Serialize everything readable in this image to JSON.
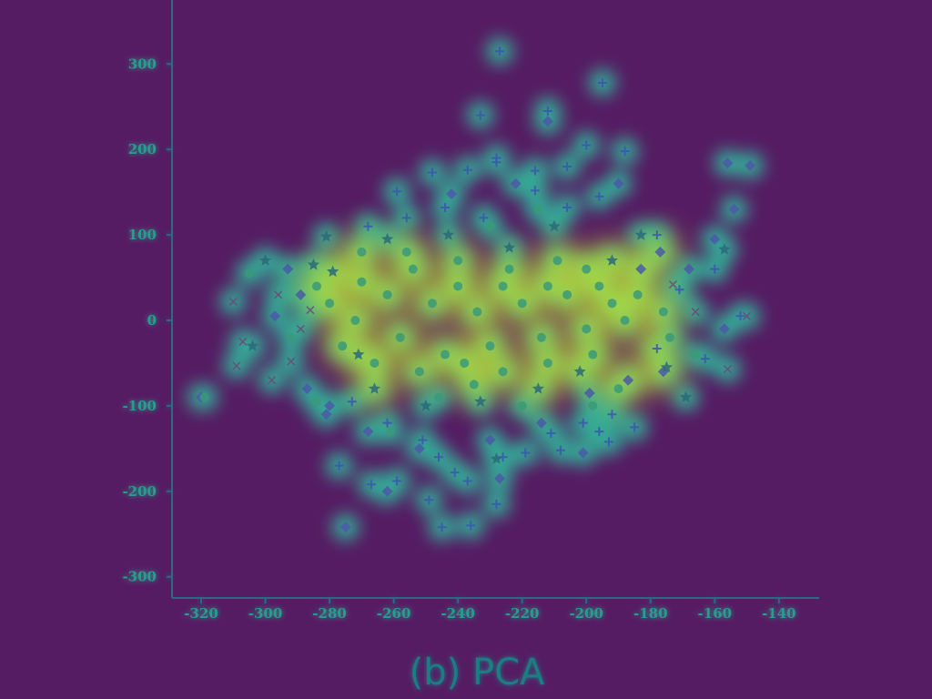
{
  "chart_data": {
    "type": "scatter",
    "title": "",
    "caption": "(b) PCA",
    "xlabel": "",
    "ylabel": "",
    "xlim": [
      -330,
      -135
    ],
    "ylim": [
      -315,
      345
    ],
    "xticks": [
      "-320",
      "-300",
      "-280",
      "-260",
      "-240",
      "-220",
      "-200",
      "-180",
      "-160",
      "-140"
    ],
    "xtick_values": [
      -320,
      -300,
      -280,
      -260,
      -240,
      -220,
      -200,
      -180,
      -160,
      -140
    ],
    "yticks": [
      "-300",
      "-200",
      "-100",
      "0",
      "100",
      "200",
      "300"
    ],
    "ytick_values": [
      -300,
      -200,
      -100,
      0,
      100,
      200,
      300
    ],
    "grid": false,
    "legend": "none",
    "colors": {
      "background": "#561c63",
      "axis": "#2a6a86",
      "tick_text": "#2a9c8c",
      "glow": "#2fc3a0",
      "core": "#c9e72a",
      "marker": "#3a56b0"
    },
    "series": [
      {
        "marker": "cross",
        "points": [
          [
            -227,
            315
          ],
          [
            -195,
            278
          ],
          [
            -233,
            240
          ],
          [
            -212,
            245
          ],
          [
            -200,
            205
          ],
          [
            -188,
            198
          ],
          [
            -228,
            190
          ],
          [
            -248,
            173
          ],
          [
            -237,
            176
          ],
          [
            -259,
            151
          ],
          [
            -228,
            185
          ],
          [
            -206,
            180
          ],
          [
            -216,
            175
          ],
          [
            -178,
            100
          ],
          [
            -171,
            36
          ],
          [
            -160,
            60
          ],
          [
            -152,
            5
          ],
          [
            -163,
            -45
          ],
          [
            -178,
            -33
          ],
          [
            -192,
            -110
          ],
          [
            -196,
            -130
          ],
          [
            -193,
            -142
          ],
          [
            -208,
            -152
          ],
          [
            -219,
            -155
          ],
          [
            -226,
            -160
          ],
          [
            -228,
            -215
          ],
          [
            -237,
            -188
          ],
          [
            -241,
            -178
          ],
          [
            -246,
            -160
          ],
          [
            -236,
            -240
          ],
          [
            -245,
            -242
          ],
          [
            -249,
            -210
          ],
          [
            -259,
            -188
          ],
          [
            -267,
            -192
          ],
          [
            -277,
            -170
          ],
          [
            -262,
            -120
          ],
          [
            -251,
            -140
          ],
          [
            -273,
            -95
          ],
          [
            -211,
            -132
          ],
          [
            -201,
            -120
          ],
          [
            -185,
            -125
          ],
          [
            -216,
            152
          ],
          [
            -206,
            132
          ],
          [
            -196,
            145
          ],
          [
            -232,
            120
          ],
          [
            -244,
            132
          ],
          [
            -256,
            120
          ],
          [
            -268,
            110
          ]
        ]
      },
      {
        "marker": "diamond",
        "points": [
          [
            -156,
            184
          ],
          [
            -149,
            181
          ],
          [
            -154,
            130
          ],
          [
            -160,
            95
          ],
          [
            -168,
            60
          ],
          [
            -157,
            -10
          ],
          [
            -176,
            -60
          ],
          [
            -187,
            -70
          ],
          [
            -199,
            -85
          ],
          [
            -214,
            -120
          ],
          [
            -227,
            -185
          ],
          [
            -262,
            -200
          ],
          [
            -275,
            -242
          ],
          [
            -281,
            -110
          ],
          [
            -287,
            -80
          ],
          [
            -293,
            60
          ],
          [
            -297,
            5
          ],
          [
            -320,
            -90
          ],
          [
            -212,
            233
          ],
          [
            -242,
            148
          ],
          [
            -222,
            160
          ],
          [
            -190,
            160
          ],
          [
            -177,
            80
          ],
          [
            -183,
            60
          ],
          [
            -201,
            -155
          ],
          [
            -230,
            -140
          ],
          [
            -252,
            -150
          ],
          [
            -268,
            -130
          ],
          [
            -280,
            -100
          ],
          [
            -289,
            30
          ]
        ]
      },
      {
        "marker": "star",
        "points": [
          [
            -300,
            70
          ],
          [
            -304,
            -30
          ],
          [
            -281,
            98
          ],
          [
            -262,
            95
          ],
          [
            -243,
            100
          ],
          [
            -169,
            -90
          ],
          [
            -175,
            -55
          ],
          [
            -157,
            83
          ],
          [
            -228,
            -162
          ],
          [
            -285,
            65
          ],
          [
            -279,
            57
          ],
          [
            -266,
            -80
          ],
          [
            -271,
            -40
          ],
          [
            -192,
            70
          ],
          [
            -183,
            100
          ],
          [
            -202,
            -60
          ],
          [
            -215,
            -80
          ],
          [
            -233,
            -95
          ],
          [
            -250,
            -100
          ],
          [
            -224,
            85
          ],
          [
            -210,
            110
          ]
        ]
      },
      {
        "marker": "x",
        "points": [
          [
            -310,
            22
          ],
          [
            -307,
            -25
          ],
          [
            -309,
            -53
          ],
          [
            -298,
            -70
          ],
          [
            -292,
            -48
          ],
          [
            -150,
            5
          ],
          [
            -156,
            -57
          ],
          [
            -166,
            10
          ],
          [
            -173,
            42
          ],
          [
            -296,
            30
          ],
          [
            -289,
            -10
          ],
          [
            -286,
            12
          ]
        ]
      },
      {
        "marker": "circle",
        "points": [
          [
            -319,
            -90
          ],
          [
            -305,
            55
          ],
          [
            -284,
            -95
          ],
          [
            -261,
            -130
          ],
          [
            -246,
            -90
          ],
          [
            -235,
            -75
          ],
          [
            -220,
            -100
          ],
          [
            -198,
            -100
          ],
          [
            -190,
            -80
          ],
          [
            -174,
            -20
          ],
          [
            -166,
            -40
          ],
          [
            -176,
            10
          ],
          [
            -184,
            30
          ],
          [
            -196,
            40
          ],
          [
            -209,
            70
          ],
          [
            -224,
            60
          ],
          [
            -240,
            70
          ],
          [
            -254,
            60
          ],
          [
            -270,
            45
          ],
          [
            -280,
            20
          ],
          [
            -272,
            0
          ],
          [
            -258,
            -20
          ],
          [
            -244,
            -40
          ],
          [
            -230,
            -30
          ],
          [
            -214,
            -20
          ],
          [
            -200,
            -10
          ],
          [
            -188,
            0
          ],
          [
            -262,
            30
          ],
          [
            -248,
            20
          ],
          [
            -234,
            10
          ],
          [
            -220,
            20
          ],
          [
            -206,
            30
          ],
          [
            -192,
            20
          ],
          [
            -252,
            -60
          ],
          [
            -238,
            -50
          ],
          [
            -226,
            -60
          ],
          [
            -212,
            -50
          ],
          [
            -198,
            -40
          ],
          [
            -266,
            -50
          ],
          [
            -276,
            -30
          ],
          [
            -226,
            40
          ],
          [
            -240,
            40
          ],
          [
            -212,
            40
          ],
          [
            -200,
            60
          ],
          [
            -256,
            80
          ],
          [
            -270,
            80
          ],
          [
            -284,
            40
          ],
          [
            -292,
            -20
          ],
          [
            -230,
            110
          ],
          [
            -215,
            130
          ]
        ]
      }
    ]
  }
}
